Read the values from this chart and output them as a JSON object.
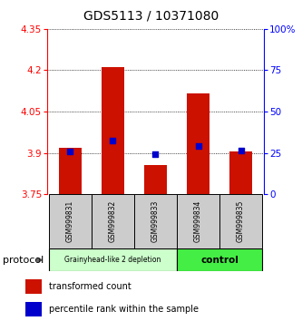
{
  "title": "GDS5113 / 10371080",
  "samples": [
    "GSM999831",
    "GSM999832",
    "GSM999833",
    "GSM999834",
    "GSM999835"
  ],
  "bar_bottoms": [
    3.75,
    3.75,
    3.75,
    3.75,
    3.75
  ],
  "bar_tops": [
    3.92,
    4.21,
    3.855,
    4.115,
    3.905
  ],
  "percentile_values": [
    3.905,
    3.945,
    3.895,
    3.925,
    3.91
  ],
  "ylim_left": [
    3.75,
    4.35
  ],
  "ylim_right": [
    0,
    100
  ],
  "yticks_left": [
    3.75,
    3.9,
    4.05,
    4.2,
    4.35
  ],
  "ytick_labels_left": [
    "3.75",
    "3.9",
    "4.05",
    "4.2",
    "4.35"
  ],
  "yticks_right": [
    0,
    25,
    50,
    75,
    100
  ],
  "ytick_labels_right": [
    "0",
    "25",
    "50",
    "75",
    "100%"
  ],
  "bar_color": "#cc1100",
  "dot_color": "#0000cc",
  "group1_indices": [
    0,
    1,
    2
  ],
  "group2_indices": [
    3,
    4
  ],
  "group1_label": "Grainyhead-like 2 depletion",
  "group2_label": "control",
  "group1_color": "#ccffcc",
  "group2_color": "#44ee44",
  "protocol_label": "protocol",
  "legend_bar_label": "transformed count",
  "legend_dot_label": "percentile rank within the sample",
  "background_color": "#ffffff",
  "sample_box_color": "#cccccc",
  "title_fontsize": 10,
  "tick_fontsize": 7.5,
  "label_fontsize": 5.5,
  "bar_width": 0.55
}
